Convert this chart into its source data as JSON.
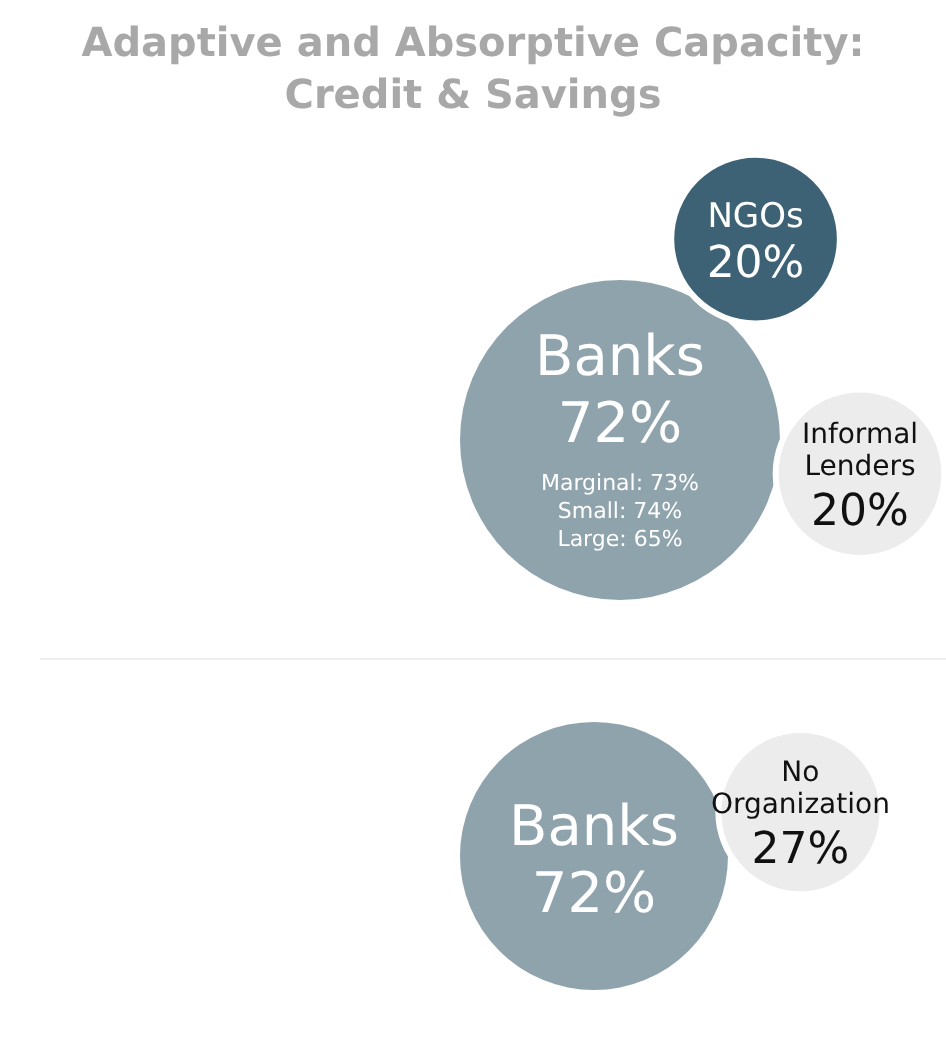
{
  "chart_data": [
    {
      "type": "other",
      "title": "Adaptive and Absorptive Capacity: Credit & Savings",
      "categories": [
        "Banks",
        "NGOs",
        "Informal Lenders"
      ],
      "values": [
        72,
        20,
        20
      ],
      "value_labels": [
        "72%",
        "20%",
        "20%"
      ],
      "colors": [
        "#8fa3ad",
        "#3d6275",
        "#ececec"
      ],
      "annotations": [
        "Marginal: 73%",
        "Small: 74%",
        "Large: 65%"
      ]
    },
    {
      "type": "other",
      "categories": [
        "Banks",
        "No Organization"
      ],
      "values": [
        72,
        27
      ],
      "value_labels": [
        "72%",
        "27%"
      ],
      "colors": [
        "#8fa3ad",
        "#ececec"
      ]
    }
  ]
}
